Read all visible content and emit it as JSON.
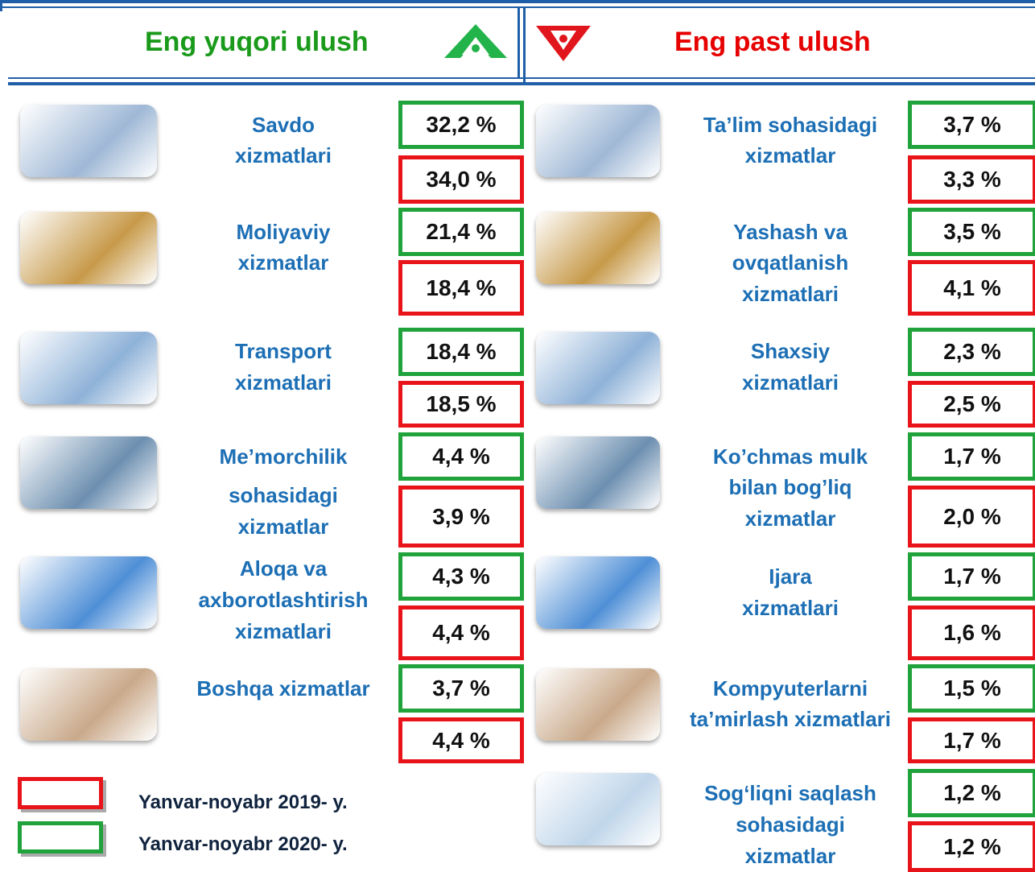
{
  "header": {
    "left": "Eng yuqori ulush",
    "right": "Eng past ulush"
  },
  "left": [
    {
      "label": [
        "Savdo",
        "xizmatlari"
      ],
      "v2020": "32,2 %",
      "v2019": "34,0 %"
    },
    {
      "label": [
        "Moliyaviy",
        "xizmatlar"
      ],
      "v2020": "21,4 %",
      "v2019": "18,4 %"
    },
    {
      "label": [
        "Transport",
        "xizmatlari"
      ],
      "v2020": "18,4 %",
      "v2019": "18,5 %"
    },
    {
      "label": [
        "Me’morchilik",
        "sohasidagi",
        "xizmatlar"
      ],
      "v2020": "4,4 %",
      "v2019": "3,9 %"
    },
    {
      "label": [
        "Aloqa va",
        "axborotlashtirish",
        "xizmatlari"
      ],
      "v2020": "4,3 %",
      "v2019": "4,4 %"
    },
    {
      "label": [
        "Boshqa xizmatlar"
      ],
      "v2020": "3,7 %",
      "v2019": "4,4 %"
    }
  ],
  "right": [
    {
      "label": [
        "Ta’lim sohasidagi",
        "xizmatlar"
      ],
      "v2020": "3,7 %",
      "v2019": "3,3 %"
    },
    {
      "label": [
        "Yashash va",
        "ovqatlanish",
        "xizmatlari"
      ],
      "v2020": "3,5 %",
      "v2019": "4,1 %"
    },
    {
      "label": [
        "Shaxsiy",
        "xizmatlari"
      ],
      "v2020": "2,3 %",
      "v2019": "2,5 %"
    },
    {
      "label": [
        "Ko’chmas mulk",
        "bilan bog’liq",
        "xizmatlar"
      ],
      "v2020": "1,7 %",
      "v2019": "2,0 %"
    },
    {
      "label": [
        "Ijara",
        "xizmatlari"
      ],
      "v2020": "1,7 %",
      "v2019": "1,6 %"
    },
    {
      "label": [
        "Kompyuterlarni",
        "ta’mirlash xizmatlari"
      ],
      "v2020": "1,5 %",
      "v2019": "1,7 %"
    },
    {
      "label": [
        "Sog‘liqni saqlash",
        "sohasidagi",
        "xizmatlar"
      ],
      "v2020": "1,2 %",
      "v2019": "1,2 %"
    }
  ],
  "legend": {
    "y2019": "Yanvar-noyabr 2019- y.",
    "y2020": "Yanvar-noyabr 2020- y."
  }
}
